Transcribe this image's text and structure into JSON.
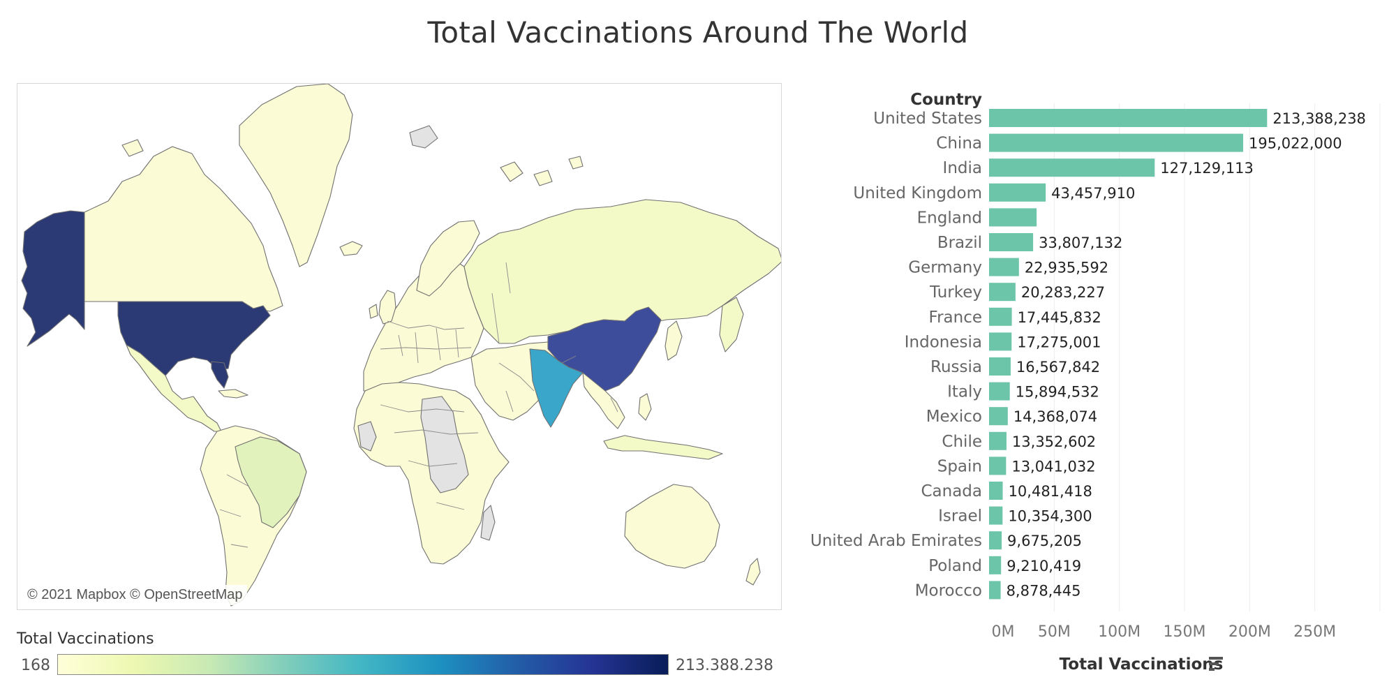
{
  "title": "Total Vaccinations Around The World",
  "map": {
    "credit": "© 2021 Mapbox © OpenStreetMap",
    "legend": {
      "title": "Total Vaccinations",
      "min_label": "168",
      "max_label": "213.388.238",
      "gradient": [
        "#ffffd9",
        "#edf8b1",
        "#c7e9b4",
        "#7fcdbb",
        "#41b6c4",
        "#1d91c0",
        "#225ea8",
        "#253494",
        "#081d58"
      ]
    },
    "colors": {
      "usa": "#2b3a75",
      "alaska": "#2b3a75",
      "china": "#3e4c9c",
      "india": "#3aa6c9",
      "brazil": "#e2f2bc",
      "low": "#fbfbd5",
      "low_alt": "#f4f9c8",
      "no_data": "#e3e3e3"
    }
  },
  "chart_data": {
    "type": "bar",
    "orientation": "horizontal",
    "column_header": "Country",
    "xlabel": "Total Vaccinations",
    "xlim": [
      0,
      300000000
    ],
    "ticks": [
      {
        "value": 0,
        "label": "0M"
      },
      {
        "value": 50000000,
        "label": "50M"
      },
      {
        "value": 100000000,
        "label": "100M"
      },
      {
        "value": 150000000,
        "label": "150M"
      },
      {
        "value": 200000000,
        "label": "200M"
      },
      {
        "value": 250000000,
        "label": "250M"
      }
    ],
    "grid": true,
    "bar_color": "#6cc4a9",
    "bars": [
      {
        "category": "United States",
        "value": 213388238,
        "label": "213,388,238"
      },
      {
        "category": "China",
        "value": 195022000,
        "label": "195,022,000"
      },
      {
        "category": "India",
        "value": 127129113,
        "label": "127,129,113"
      },
      {
        "category": "United Kingdom",
        "value": 43457910,
        "label": "43,457,910"
      },
      {
        "category": "England",
        "value": 36500000,
        "label": ""
      },
      {
        "category": "Brazil",
        "value": 33807132,
        "label": "33,807,132"
      },
      {
        "category": "Germany",
        "value": 22935592,
        "label": "22,935,592"
      },
      {
        "category": "Turkey",
        "value": 20283227,
        "label": "20,283,227"
      },
      {
        "category": "France",
        "value": 17445832,
        "label": "17,445,832"
      },
      {
        "category": "Indonesia",
        "value": 17275001,
        "label": "17,275,001"
      },
      {
        "category": "Russia",
        "value": 16567842,
        "label": "16,567,842"
      },
      {
        "category": "Italy",
        "value": 15894532,
        "label": "15,894,532"
      },
      {
        "category": "Mexico",
        "value": 14368074,
        "label": "14,368,074"
      },
      {
        "category": "Chile",
        "value": 13352602,
        "label": "13,352,602"
      },
      {
        "category": "Spain",
        "value": 13041032,
        "label": "13,041,032"
      },
      {
        "category": "Canada",
        "value": 10481418,
        "label": "10,481,418"
      },
      {
        "category": "Israel",
        "value": 10354300,
        "label": "10,354,300"
      },
      {
        "category": "United Arab Emirates",
        "value": 9675205,
        "label": "9,675,205"
      },
      {
        "category": "Poland",
        "value": 9210419,
        "label": "9,210,419"
      },
      {
        "category": "Morocco",
        "value": 8878445,
        "label": "8,878,445"
      }
    ]
  }
}
